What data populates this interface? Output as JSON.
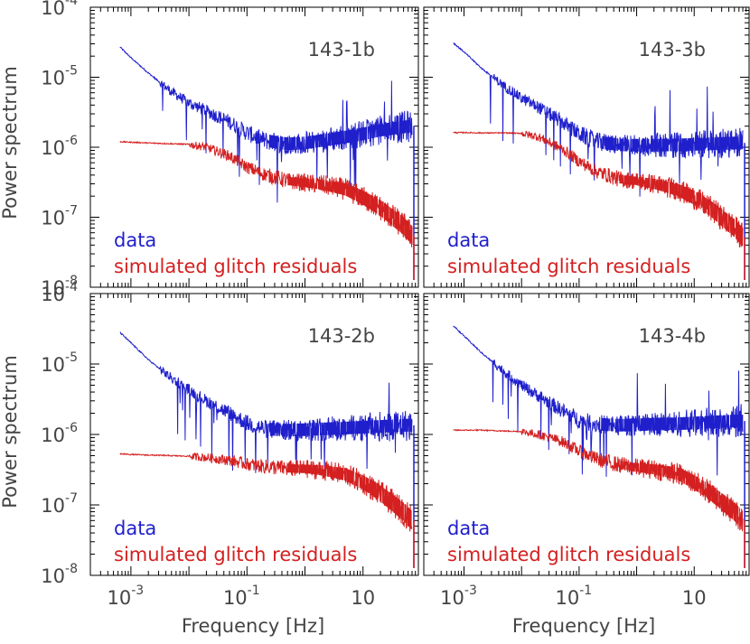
{
  "figure": {
    "ylabel": "Power spectrum",
    "xlabel": "Frequency [Hz]"
  },
  "colors": {
    "data": "#1f1fcc",
    "sim": "#d42020",
    "axis": "#000000",
    "text": "#444444"
  },
  "chart_data": [
    {
      "type": "line",
      "title": "143-1b",
      "xscale": "log",
      "yscale": "log",
      "xlim": [
        0.0002,
        90
      ],
      "ylim": [
        1e-08,
        0.0001
      ],
      "xticks": [
        {
          "v": 0.001,
          "m": "10",
          "e": "-3"
        },
        {
          "v": 0.1,
          "m": "10",
          "e": "-1"
        },
        {
          "v": 10,
          "m": "10",
          "e": ""
        }
      ],
      "yticks": [
        {
          "v": 1e-08,
          "m": "10",
          "e": "-8"
        },
        {
          "v": 1e-07,
          "m": "10",
          "e": "-7"
        },
        {
          "v": 1e-06,
          "m": "10",
          "e": "-6"
        },
        {
          "v": 1e-05,
          "m": "10",
          "e": "-5"
        },
        {
          "v": 0.0001,
          "m": "10",
          "e": "-4"
        }
      ],
      "legend": "bottom-left",
      "series": [
        {
          "name": "data",
          "x": [
            0.00065,
            0.001,
            0.002,
            0.005,
            0.01,
            0.02,
            0.05,
            0.1,
            0.2,
            0.5,
            1,
            2,
            5,
            10,
            20,
            50,
            70
          ],
          "y": [
            2.7e-05,
            1.9e-05,
            1.15e-05,
            6.2e-06,
            4.3e-06,
            3.3e-06,
            2.3e-06,
            1.6e-06,
            1.25e-06,
            1.12e-06,
            1.15e-06,
            1.25e-06,
            1.4e-06,
            1.55e-06,
            1.75e-06,
            1.95e-06,
            2e-06
          ]
        },
        {
          "name": "simulated glitch residuals",
          "x": [
            0.00065,
            0.001,
            0.002,
            0.005,
            0.01,
            0.02,
            0.05,
            0.1,
            0.2,
            0.5,
            1,
            2,
            5,
            10,
            20,
            50,
            70
          ],
          "y": [
            1.2e-06,
            1.18e-06,
            1.15e-06,
            1.12e-06,
            1.1e-06,
            1e-06,
            7.5e-07,
            5.2e-07,
            4.1e-07,
            3.3e-07,
            3.1e-07,
            2.9e-07,
            2.5e-07,
            1.9e-07,
            1.35e-07,
            7.5e-08,
            5.5e-08
          ]
        }
      ]
    },
    {
      "type": "line",
      "title": "143-3b",
      "xscale": "log",
      "yscale": "log",
      "xlim": [
        0.0002,
        90
      ],
      "ylim": [
        1e-08,
        0.0001
      ],
      "xticks": [
        {
          "v": 0.001,
          "m": "10",
          "e": "-3"
        },
        {
          "v": 0.1,
          "m": "10",
          "e": "-1"
        },
        {
          "v": 10,
          "m": "10",
          "e": ""
        }
      ],
      "yticks": [],
      "legend": "bottom-left",
      "series": [
        {
          "name": "data",
          "x": [
            0.00065,
            0.001,
            0.002,
            0.005,
            0.01,
            0.02,
            0.05,
            0.1,
            0.2,
            0.5,
            1,
            2,
            5,
            10,
            20,
            50,
            70
          ],
          "y": [
            3.1e-05,
            2.3e-05,
            1.35e-05,
            7.5e-06,
            5e-06,
            3.7e-06,
            2.3e-06,
            1.55e-06,
            1.2e-06,
            1.08e-06,
            1.07e-06,
            1.07e-06,
            1.08e-06,
            1.1e-06,
            1.12e-06,
            1.15e-06,
            1.15e-06
          ]
        },
        {
          "name": "simulated glitch residuals",
          "x": [
            0.00065,
            0.001,
            0.002,
            0.005,
            0.01,
            0.02,
            0.05,
            0.1,
            0.2,
            0.5,
            1,
            2,
            5,
            10,
            20,
            50,
            70
          ],
          "y": [
            1.62e-06,
            1.62e-06,
            1.6e-06,
            1.6e-06,
            1.58e-06,
            1.4e-06,
            9.5e-07,
            6.3e-07,
            4.5e-07,
            3.5e-07,
            3.3e-07,
            3e-07,
            2.5e-07,
            1.9e-07,
            1.3e-07,
            7e-08,
            5.2e-08
          ]
        }
      ]
    },
    {
      "type": "line",
      "title": "143-2b",
      "xscale": "log",
      "yscale": "log",
      "xlim": [
        0.0002,
        90
      ],
      "ylim": [
        1e-08,
        0.0001
      ],
      "xticks": [
        {
          "v": 0.001,
          "m": "10",
          "e": "-3"
        },
        {
          "v": 0.1,
          "m": "10",
          "e": "-1"
        },
        {
          "v": 10,
          "m": "10",
          "e": ""
        }
      ],
      "yticks": [
        {
          "v": 1e-08,
          "m": "10",
          "e": "-8"
        },
        {
          "v": 1e-07,
          "m": "10",
          "e": "-7"
        },
        {
          "v": 1e-06,
          "m": "10",
          "e": "-6"
        },
        {
          "v": 1e-05,
          "m": "10",
          "e": "-5"
        },
        {
          "v": 0.0001,
          "m": "10",
          "e": "-4"
        }
      ],
      "legend": "bottom-left",
      "series": [
        {
          "name": "data",
          "x": [
            0.00065,
            0.001,
            0.002,
            0.005,
            0.01,
            0.02,
            0.05,
            0.1,
            0.2,
            0.5,
            1,
            2,
            5,
            10,
            20,
            50,
            70
          ],
          "y": [
            2.8e-05,
            2e-05,
            1.15e-05,
            6.3e-06,
            4.3e-06,
            3e-06,
            2e-06,
            1.45e-06,
            1.2e-06,
            1.15e-06,
            1.17e-06,
            1.2e-06,
            1.23e-06,
            1.27e-06,
            1.3e-06,
            1.35e-06,
            1.35e-06
          ]
        },
        {
          "name": "simulated glitch residuals",
          "x": [
            0.00065,
            0.001,
            0.002,
            0.005,
            0.01,
            0.02,
            0.05,
            0.1,
            0.2,
            0.5,
            1,
            2,
            5,
            10,
            20,
            50,
            70
          ],
          "y": [
            5.3e-07,
            5.2e-07,
            5.1e-07,
            5e-07,
            4.9e-07,
            4.7e-07,
            4.3e-07,
            3.8e-07,
            3.5e-07,
            3.3e-07,
            3.25e-07,
            3.1e-07,
            2.7e-07,
            2.1e-07,
            1.45e-07,
            8e-08,
            6e-08
          ]
        }
      ]
    },
    {
      "type": "line",
      "title": "143-4b",
      "xscale": "log",
      "yscale": "log",
      "xlim": [
        0.0002,
        90
      ],
      "ylim": [
        1e-08,
        0.0001
      ],
      "xticks": [
        {
          "v": 0.001,
          "m": "10",
          "e": "-3"
        },
        {
          "v": 0.1,
          "m": "10",
          "e": "-1"
        },
        {
          "v": 10,
          "m": "10",
          "e": ""
        }
      ],
      "yticks": [],
      "legend": "bottom-left",
      "series": [
        {
          "name": "data",
          "x": [
            0.00065,
            0.001,
            0.002,
            0.005,
            0.01,
            0.02,
            0.05,
            0.1,
            0.2,
            0.5,
            1,
            2,
            5,
            10,
            20,
            50,
            70
          ],
          "y": [
            3.5e-05,
            2.5e-05,
            1.45e-05,
            7.8e-06,
            5e-06,
            3.5e-06,
            2.2e-06,
            1.6e-06,
            1.4e-06,
            1.35e-06,
            1.37e-06,
            1.4e-06,
            1.42e-06,
            1.45e-06,
            1.5e-06,
            1.55e-06,
            1.55e-06
          ]
        },
        {
          "name": "simulated glitch residuals",
          "x": [
            0.00065,
            0.001,
            0.002,
            0.005,
            0.01,
            0.02,
            0.05,
            0.1,
            0.2,
            0.5,
            1,
            2,
            5,
            10,
            20,
            50,
            70
          ],
          "y": [
            1.15e-06,
            1.15e-06,
            1.15e-06,
            1.12e-06,
            1.1e-06,
            1e-06,
            8e-07,
            5.8e-07,
            4.5e-07,
            3.7e-07,
            3.4e-07,
            3.2e-07,
            2.8e-07,
            2.1e-07,
            1.45e-07,
            8e-08,
            6e-08
          ]
        }
      ]
    }
  ]
}
